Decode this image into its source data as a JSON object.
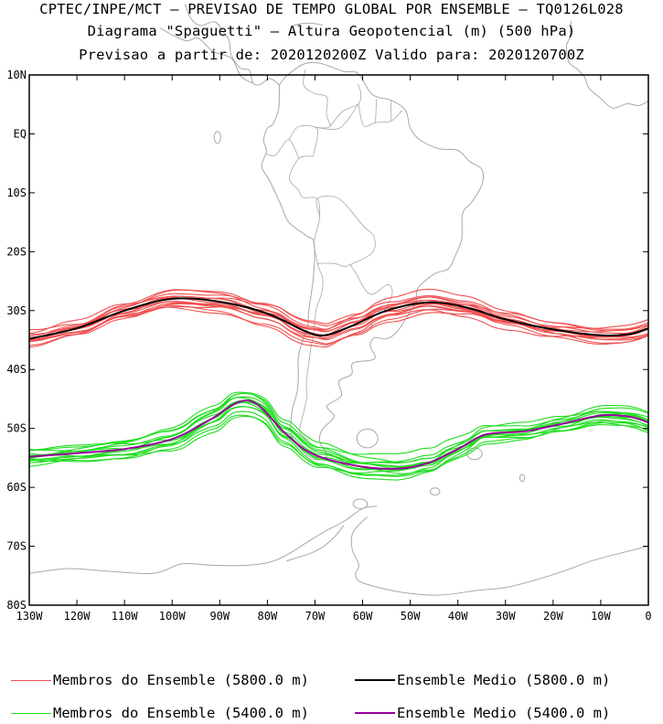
{
  "header": {
    "line1": "CPTEC/INPE/MCT — PREVISAO DE TEMPO GLOBAL POR ENSEMBLE — TQ0126L028",
    "line2": "Diagrama \"Spaguetti\" — Altura Geopotencial (m) (500 hPa)",
    "line3": "Previsao a partir de: 2020120200Z  Valido para: 2020120700Z"
  },
  "map": {
    "lon_range": [
      -130,
      0
    ],
    "lat_range": [
      -80,
      10
    ],
    "lat_labels": [
      "10N",
      "EQ",
      "10S",
      "20S",
      "30S",
      "40S",
      "50S",
      "60S",
      "70S",
      "80S"
    ],
    "lon_labels": [
      "130W",
      "120W",
      "110W",
      "100W",
      "90W",
      "80W",
      "70W",
      "60W",
      "50W",
      "40W",
      "30W",
      "20W",
      "10W",
      "0"
    ],
    "colors": {
      "members_5800": "#f05050",
      "mean_5800": "#000000",
      "members_5400": "#20dd20",
      "mean_5400": "#990099",
      "coast": "#a8a8a8"
    },
    "contour_5800_mean": [
      [
        -130,
        -34.8
      ],
      [
        -120,
        -33
      ],
      [
        -110,
        -30
      ],
      [
        -100,
        -28
      ],
      [
        -90,
        -28.5
      ],
      [
        -80,
        -30.5
      ],
      [
        -72,
        -33.5
      ],
      [
        -68,
        -34.2
      ],
      [
        -62,
        -32.5
      ],
      [
        -55,
        -30
      ],
      [
        -46,
        -28.6
      ],
      [
        -38,
        -29.5
      ],
      [
        -30,
        -31.5
      ],
      [
        -20,
        -33.2
      ],
      [
        -10,
        -34.2
      ],
      [
        -4,
        -34
      ],
      [
        0,
        -33
      ]
    ],
    "contour_5400_mean": [
      [
        -130,
        -54.8
      ],
      [
        -120,
        -54.2
      ],
      [
        -110,
        -53.5
      ],
      [
        -100,
        -51.8
      ],
      [
        -92,
        -48.5
      ],
      [
        -86,
        -45.5
      ],
      [
        -82,
        -46
      ],
      [
        -76,
        -51
      ],
      [
        -70,
        -54.5
      ],
      [
        -60,
        -56.5
      ],
      [
        -52,
        -56.8
      ],
      [
        -46,
        -55.8
      ],
      [
        -40,
        -53.5
      ],
      [
        -34,
        -51
      ],
      [
        -26,
        -50.5
      ],
      [
        -18,
        -49.2
      ],
      [
        -10,
        -47.8
      ],
      [
        -4,
        -48
      ],
      [
        0,
        -49
      ]
    ]
  },
  "legend": {
    "members_5800": "Membros do Ensemble (5800.0 m)",
    "mean_5800": "Ensemble Medio (5800.0 m)",
    "members_5400": "Membros do Ensemble (5400.0 m)",
    "mean_5400": "Ensemble Medio (5400.0 m)"
  }
}
